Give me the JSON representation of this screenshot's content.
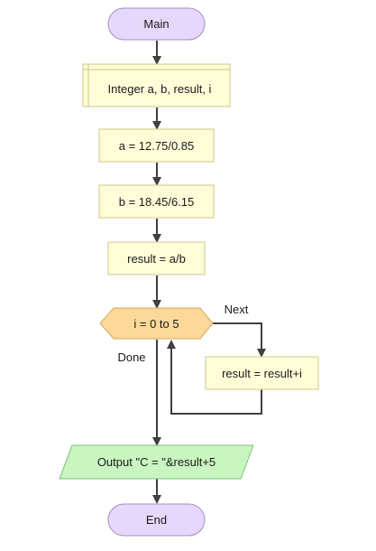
{
  "flowchart": {
    "start": {
      "label": "Main"
    },
    "declare": {
      "label": "Integer a, b, result, i"
    },
    "assign_a": {
      "label": "a = 12.75/0.85"
    },
    "assign_b": {
      "label": "b = 18.45/6.15"
    },
    "assign_result": {
      "label": "result = a/b"
    },
    "loop": {
      "label": "i = 0 to 5",
      "next_label": "Next",
      "done_label": "Done"
    },
    "loop_body": {
      "label": "result = result+i"
    },
    "output": {
      "label": "Output \"C = \"&result+5"
    },
    "end": {
      "label": "End"
    }
  },
  "colors": {
    "terminal_fill": "#e6d8fa",
    "terminal_stroke": "#a08cc8",
    "process_fill": "#fffdd8",
    "process_stroke": "#cfc888",
    "loop_fill": "#fcd99a",
    "loop_stroke": "#d4a85a",
    "output_fill": "#c8f5c0",
    "output_stroke": "#7ec07a",
    "connector": "#404040"
  }
}
